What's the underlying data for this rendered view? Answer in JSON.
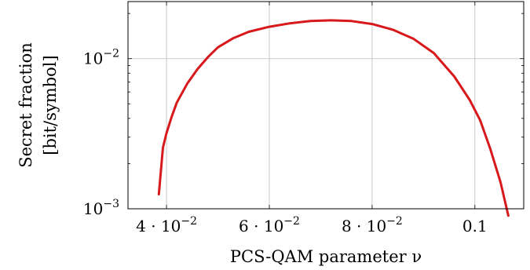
{
  "chart_data": {
    "type": "line",
    "title": "",
    "xlabel": "PCS-QAM parameter ν",
    "ylabel_lines": [
      "Secret fraction",
      "[bit/symbol]"
    ],
    "xscale": "linear",
    "yscale": "log",
    "xlim": [
      0.0325,
      0.1095
    ],
    "ylim": [
      0.001,
      0.024
    ],
    "grid": true,
    "legend": "none",
    "x_ticks": [
      {
        "value": 0.04,
        "base": "4 · 10",
        "exp": "−2"
      },
      {
        "value": 0.06,
        "base": "6 · 10",
        "exp": "−2"
      },
      {
        "value": 0.08,
        "base": "8 · 10",
        "exp": "−2"
      },
      {
        "value": 0.1,
        "base": "0.1",
        "exp": ""
      }
    ],
    "y_ticks": [
      {
        "value": 0.001,
        "base": "10",
        "exp": "−3"
      },
      {
        "value": 0.01,
        "base": "10",
        "exp": "−2"
      }
    ],
    "series": [
      {
        "color": "#d7191c",
        "x": [
          0.0385,
          0.0393,
          0.04,
          0.041,
          0.042,
          0.044,
          0.046,
          0.048,
          0.05,
          0.053,
          0.056,
          0.06,
          0.064,
          0.068,
          0.072,
          0.076,
          0.08,
          0.084,
          0.088,
          0.092,
          0.096,
          0.099,
          0.101,
          0.103,
          0.105,
          0.1065
        ],
        "y": [
          0.00125,
          0.00255,
          0.0032,
          0.0041,
          0.0051,
          0.0068,
          0.0085,
          0.0102,
          0.0119,
          0.0137,
          0.0151,
          0.0163,
          0.0172,
          0.0178,
          0.018,
          0.0178,
          0.017,
          0.0156,
          0.0136,
          0.0109,
          0.0076,
          0.0053,
          0.0039,
          0.0025,
          0.0015,
          0.0009
        ]
      }
    ]
  }
}
